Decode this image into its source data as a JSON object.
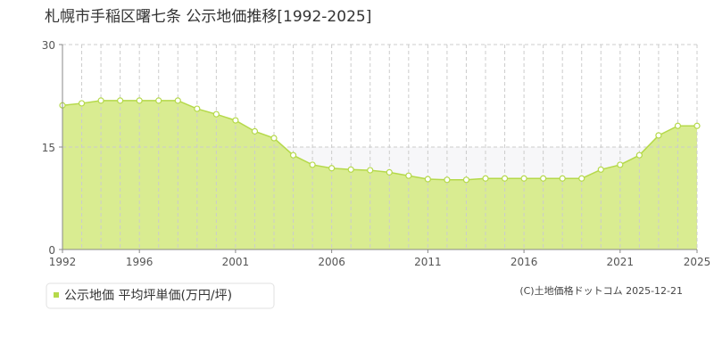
{
  "chart_data": {
    "type": "area",
    "title": "札幌市手稲区曙七条 公示地価推移[1992-2025]",
    "x": [
      1992,
      1993,
      1994,
      1995,
      1996,
      1997,
      1998,
      1999,
      2000,
      2001,
      2002,
      2003,
      2004,
      2005,
      2006,
      2007,
      2008,
      2009,
      2010,
      2011,
      2012,
      2013,
      2014,
      2015,
      2016,
      2017,
      2018,
      2019,
      2020,
      2021,
      2022,
      2023,
      2024,
      2025
    ],
    "series": [
      {
        "name": "公示地価 平均坪単価(万円/坪)",
        "color": "#b5d94a",
        "values": [
          21.1,
          21.4,
          21.8,
          21.8,
          21.8,
          21.8,
          21.8,
          20.6,
          19.8,
          18.9,
          17.3,
          16.3,
          13.8,
          12.4,
          11.9,
          11.7,
          11.6,
          11.3,
          10.8,
          10.3,
          10.2,
          10.2,
          10.4,
          10.4,
          10.4,
          10.4,
          10.4,
          10.4,
          11.7,
          12.4,
          13.8,
          16.7,
          18.1,
          18.1
        ]
      }
    ],
    "xlim": [
      1992,
      2025
    ],
    "xticks": [
      1992,
      1996,
      2001,
      2006,
      2011,
      2016,
      2021,
      2025
    ],
    "ylim": [
      0,
      30
    ],
    "yticks": [
      0,
      15,
      30
    ],
    "grid": true,
    "source": "(C)土地価格ドットコム 2025-12-21"
  }
}
